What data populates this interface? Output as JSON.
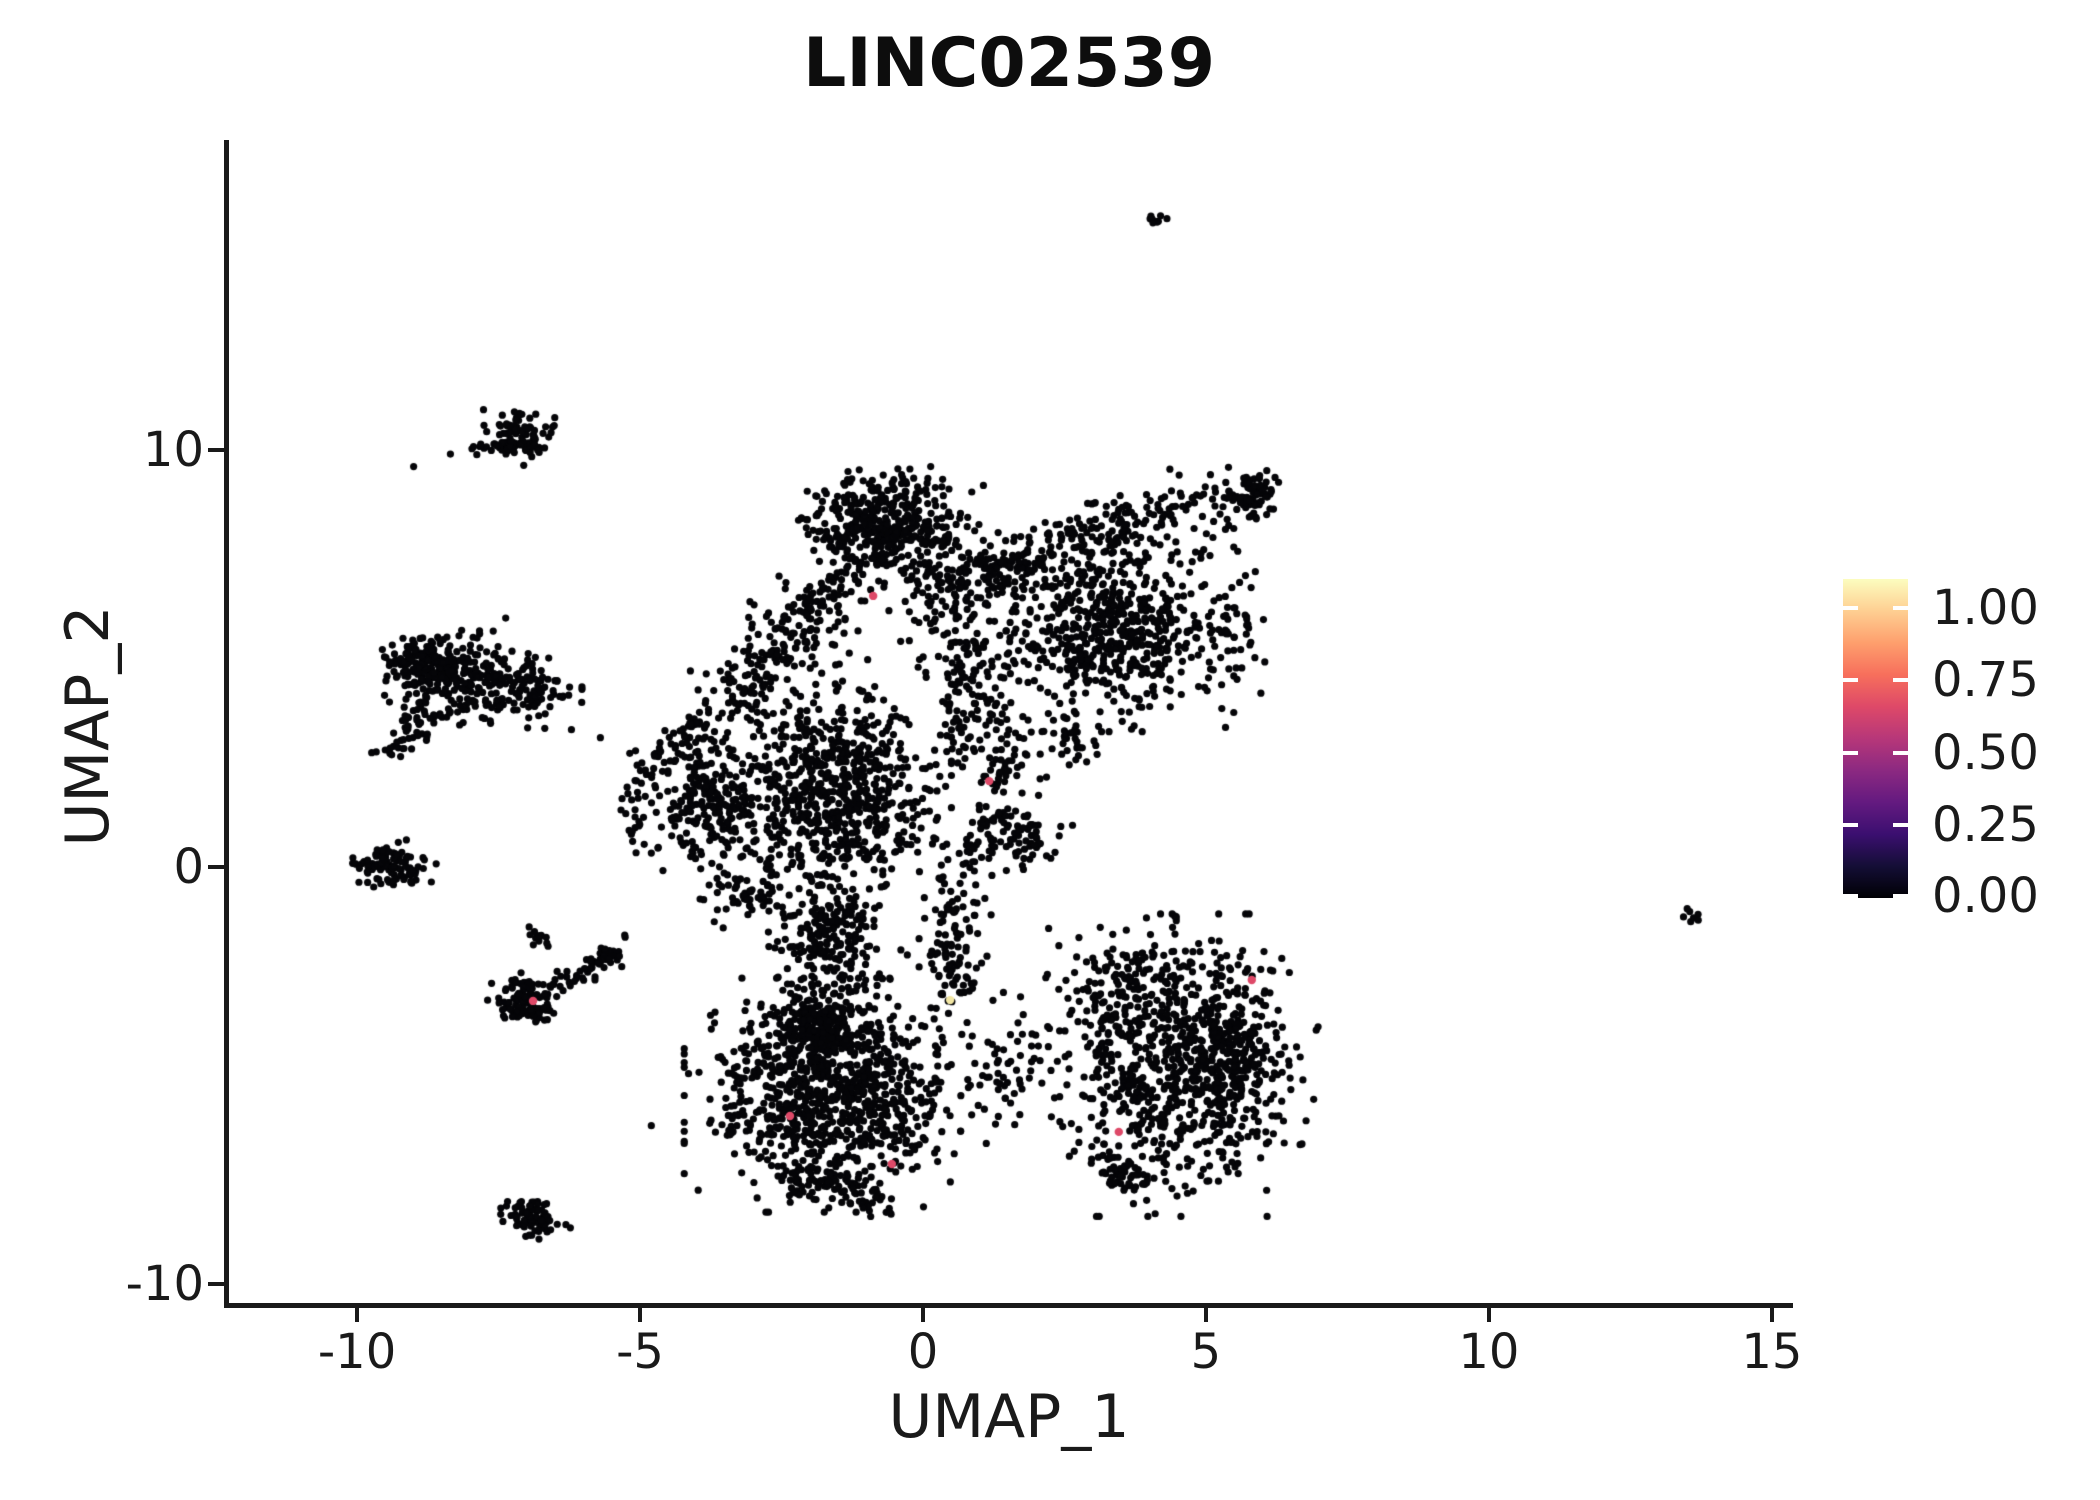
{
  "figure": {
    "title": "LINC02539"
  },
  "chart_data": {
    "type": "scatter",
    "title": "LINC02539",
    "xlabel": "UMAP_1",
    "ylabel": "UMAP_2",
    "xlim": [
      -12.28,
      15.32
    ],
    "ylim": [
      -10.5,
      17.43
    ],
    "x_ticks": [
      -10,
      -5,
      0,
      5,
      10,
      15
    ],
    "y_ticks": [
      -10,
      0,
      10
    ],
    "grid": false,
    "legend_position": "right",
    "point_color": "#050508",
    "point_radius_px": 3.6,
    "highlight_radius_px": 4.2,
    "seed": 20539,
    "colorbar": {
      "tick_labels": [
        "1.00",
        "0.75",
        "0.50",
        "0.25",
        "0.00"
      ],
      "tick_values": [
        1.0,
        0.75,
        0.5,
        0.25,
        0.0
      ],
      "tick_fracs_from_top": [
        0.091,
        0.318,
        0.545,
        0.771,
        0.994
      ],
      "gradient_stops_bottom_to_top": [
        "#000004",
        "#140e36",
        "#3b0f70",
        "#641a80",
        "#8c2981",
        "#b73779",
        "#de4968",
        "#f76f5c",
        "#fe9f6d",
        "#fecf92",
        "#fcfdbf"
      ]
    },
    "clusters": [
      {
        "t": "b",
        "cx": -7.12,
        "cy": 10.31,
        "rx": 0.5,
        "ry": 0.55,
        "n": 95
      },
      {
        "t": "s",
        "p": [
          [
            -8.13,
            9.95
          ],
          [
            -7.39,
            10.12
          ]
        ],
        "sg": 0.09,
        "n": 14
      },
      {
        "t": "b",
        "cx": -8.45,
        "cy": 4.6,
        "rx": 1.05,
        "ry": 1.0,
        "n": 250
      },
      {
        "t": "b",
        "cx": -7.12,
        "cy": 4.25,
        "rx": 0.8,
        "ry": 0.7,
        "n": 120
      },
      {
        "t": "b",
        "cx": -8.89,
        "cy": 4.84,
        "rx": 0.45,
        "ry": 0.6,
        "n": 80
      },
      {
        "t": "s",
        "p": [
          [
            -9.42,
            2.81
          ],
          [
            -8.71,
            3.65
          ]
        ],
        "sg": 0.18,
        "n": 45
      },
      {
        "t": "b",
        "cx": -9.45,
        "cy": 0.02,
        "rx": 0.62,
        "ry": 0.46,
        "n": 110
      },
      {
        "t": "b",
        "cx": -6.94,
        "cy": -3.19,
        "rx": 0.55,
        "ry": 0.52,
        "n": 110
      },
      {
        "t": "s",
        "p": [
          [
            -6.5,
            -2.83
          ],
          [
            -5.35,
            -1.99
          ]
        ],
        "sg": 0.13,
        "n": 60
      },
      {
        "t": "b",
        "cx": -6.77,
        "cy": -1.63,
        "rx": 0.22,
        "ry": 0.24,
        "n": 12
      },
      {
        "t": "b",
        "cx": -6.86,
        "cy": -8.42,
        "rx": 0.46,
        "ry": 0.4,
        "n": 85
      },
      {
        "t": "b",
        "cx": -0.67,
        "cy": 8.15,
        "rx": 1.27,
        "ry": 1.06,
        "n": 430
      },
      {
        "t": "s",
        "p": [
          [
            1.1,
            7.0
          ],
          [
            3.48,
            8.32
          ],
          [
            6.1,
            9.28
          ]
        ],
        "sg": 0.34,
        "n": 175
      },
      {
        "t": "b",
        "cx": 5.87,
        "cy": 8.92,
        "rx": 0.34,
        "ry": 0.42,
        "n": 60
      },
      {
        "t": "s",
        "p": [
          [
            2.24,
            7.36
          ],
          [
            5.25,
            8.08
          ]
        ],
        "sg": 0.5,
        "n": 80
      },
      {
        "t": "b",
        "cx": 3.22,
        "cy": 5.68,
        "rx": 1.66,
        "ry": 1.78,
        "n": 560
      },
      {
        "t": "b",
        "cx": 5.42,
        "cy": 5.44,
        "rx": 0.55,
        "ry": 1.2,
        "n": 50
      },
      {
        "t": "s",
        "p": [
          [
            2.51,
            3.53
          ],
          [
            2.77,
            2.45
          ]
        ],
        "sg": 0.2,
        "n": 40
      },
      {
        "t": "s",
        "p": [
          [
            0.3,
            7.12
          ],
          [
            0.92,
            4.0
          ],
          [
            1.36,
            1.85
          ]
        ],
        "sg": 0.4,
        "n": 270
      },
      {
        "t": "s",
        "p": [
          [
            1.1,
            1.13
          ],
          [
            2.16,
            0.77
          ]
        ],
        "sg": 0.25,
        "n": 55
      },
      {
        "t": "s",
        "p": [
          [
            0.92,
            0.89
          ],
          [
            0.48,
            -1.75
          ],
          [
            0.62,
            -3.19
          ]
        ],
        "sg": 0.25,
        "n": 135
      },
      {
        "t": "s",
        "p": [
          [
            -1.38,
            6.88
          ],
          [
            -2.84,
            4.92
          ],
          [
            -3.48,
            3.81
          ]
        ],
        "sg": 0.36,
        "n": 225
      },
      {
        "t": "s",
        "p": [
          [
            -3.94,
            3.48
          ],
          [
            -4.61,
            2.73
          ]
        ],
        "sg": 0.18,
        "n": 40
      },
      {
        "t": "b",
        "cx": -1.55,
        "cy": 1.85,
        "rx": 1.5,
        "ry": 2.28,
        "n": 720
      },
      {
        "t": "b",
        "cx": -1.64,
        "cy": -1.39,
        "rx": 0.7,
        "ry": 0.85,
        "n": 120
      },
      {
        "t": "b",
        "cx": -3.76,
        "cy": 1.49,
        "rx": 0.97,
        "ry": 1.44,
        "n": 225
      },
      {
        "t": "b",
        "cx": -5.0,
        "cy": 1.61,
        "rx": 0.45,
        "ry": 1.05,
        "n": 35
      },
      {
        "t": "s",
        "p": [
          [
            -2.17,
            -1.75
          ],
          [
            -0.85,
            -2.95
          ]
        ],
        "sg": 0.45,
        "n": 90
      },
      {
        "t": "b",
        "cx": 1.36,
        "cy": 7.12,
        "rx": 1.05,
        "ry": 0.72,
        "n": 90
      },
      {
        "t": "b",
        "cx": -3.06,
        "cy": -0.67,
        "rx": 0.7,
        "ry": 0.85,
        "n": 60
      },
      {
        "t": "b",
        "cx": 1.89,
        "cy": 0.41,
        "rx": 0.55,
        "ry": 0.6,
        "n": 25
      },
      {
        "t": "b",
        "cx": -1.55,
        "cy": -5.47,
        "rx": 1.95,
        "ry": 2.05,
        "n": 920
      },
      {
        "t": "s",
        "p": [
          [
            -2.26,
            -7.39
          ],
          [
            -0.8,
            -8.06
          ]
        ],
        "sg": 0.22,
        "n": 85
      },
      {
        "t": "b",
        "cx": -1.91,
        "cy": -3.79,
        "rx": 0.75,
        "ry": 0.72,
        "n": 200
      },
      {
        "t": "b",
        "cx": 1.45,
        "cy": -4.99,
        "rx": 0.8,
        "ry": 1.45,
        "n": 60
      },
      {
        "t": "b",
        "cx": 4.45,
        "cy": -4.75,
        "rx": 1.85,
        "ry": 2.65,
        "n": 760
      },
      {
        "t": "b",
        "cx": 5.6,
        "cy": -4.27,
        "rx": 0.62,
        "ry": 1.7,
        "n": 140
      },
      {
        "t": "s",
        "p": [
          [
            2.95,
            -6.91
          ],
          [
            3.92,
            -7.63
          ]
        ],
        "sg": 0.22,
        "n": 60
      },
      {
        "t": "b",
        "cx": 3.48,
        "cy": -2.95,
        "rx": 1.05,
        "ry": 1.1,
        "n": 90
      },
      {
        "t": "b",
        "cx": 4.13,
        "cy": 15.52,
        "rx": 0.16,
        "ry": 0.19,
        "n": 9
      },
      {
        "t": "s",
        "p": [
          [
            13.41,
            -0.98
          ],
          [
            13.69,
            -1.32
          ]
        ],
        "sg": 0.05,
        "n": 7
      },
      {
        "t": "p",
        "pts": [
          [
            -5.27,
            -1.63
          ],
          [
            -5.7,
            3.1
          ],
          [
            -4.8,
            -6.2
          ],
          [
            -9.0,
            9.6
          ],
          [
            -8.35,
            9.9
          ]
        ]
      }
    ],
    "highlight_points": [
      {
        "x": -0.88,
        "y": 6.5,
        "color": "#DE4968"
      },
      {
        "x": 1.17,
        "y": 2.06,
        "color": "#DE4968"
      },
      {
        "x": -6.89,
        "y": -3.21,
        "color": "#DE4968"
      },
      {
        "x": -2.35,
        "y": -5.97,
        "color": "#DE4968"
      },
      {
        "x": -0.55,
        "y": -7.12,
        "color": "#DE4968"
      },
      {
        "x": 3.46,
        "y": -6.35,
        "color": "#DE4968"
      },
      {
        "x": 5.81,
        "y": -2.71,
        "color": "#DE4968"
      },
      {
        "x": 0.48,
        "y": -3.19,
        "color": "#F2E6A3"
      }
    ]
  }
}
